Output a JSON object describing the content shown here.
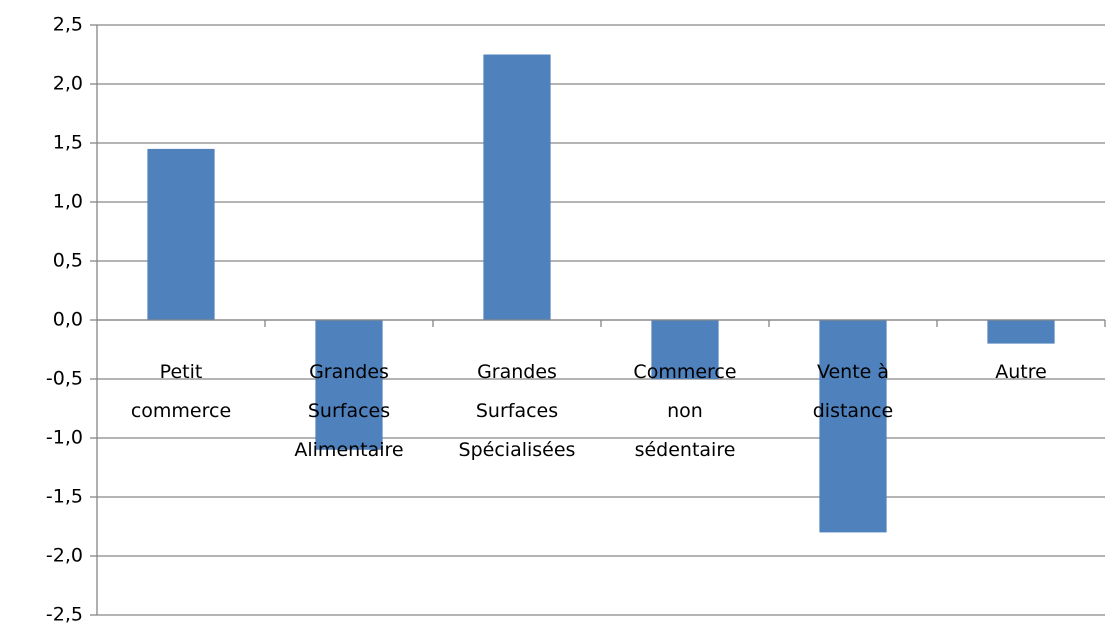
{
  "chart_data": {
    "type": "bar",
    "categories": [
      "Petit commerce",
      "Grandes Surfaces Alimentaire",
      "Grandes Surfaces Spécialisées",
      "Commerce non sédentaire",
      "Vente à distance",
      "Autre"
    ],
    "values": [
      1.45,
      -1.1,
      2.25,
      -0.5,
      -1.8,
      -0.2
    ],
    "color": "#4f81bd",
    "ylim": [
      -2.5,
      2.5
    ],
    "yticks": [
      {
        "value": 2.5,
        "label": "2,5"
      },
      {
        "value": 2.0,
        "label": "2,0"
      },
      {
        "value": 1.5,
        "label": "1,5"
      },
      {
        "value": 1.0,
        "label": "1,0"
      },
      {
        "value": 0.5,
        "label": "0,5"
      },
      {
        "value": 0.0,
        "label": "0,0"
      },
      {
        "value": -0.5,
        "label": "-0,5"
      },
      {
        "value": -1.0,
        "label": "-1,0"
      },
      {
        "value": -1.5,
        "label": "-1,5"
      },
      {
        "value": -2.0,
        "label": "-2,0"
      },
      {
        "value": -2.5,
        "label": "-2,5"
      }
    ],
    "grid": true
  }
}
